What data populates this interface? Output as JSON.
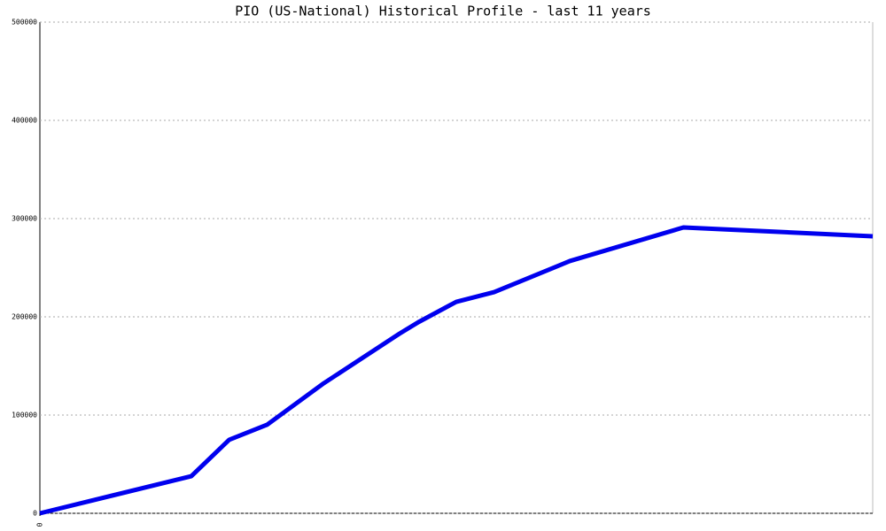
{
  "chart_data": {
    "type": "line",
    "title": "PIO (US-National) Historical Profile - last 11 years",
    "x": [
      0,
      2,
      2.5,
      3,
      3.75,
      4.75,
      5,
      5.5,
      6,
      7,
      8.5,
      9,
      11
    ],
    "values": [
      0,
      37800,
      74800,
      90100,
      132400,
      182900,
      194600,
      215300,
      225200,
      256800,
      291000,
      289200,
      282000
    ],
    "color": "#0000ee",
    "xlim": [
      0,
      11
    ],
    "xticks": [
      0
    ],
    "ylim": [
      0,
      500000
    ],
    "yticks": [
      0,
      100000,
      200000,
      300000,
      400000,
      500000
    ],
    "grid": true
  }
}
